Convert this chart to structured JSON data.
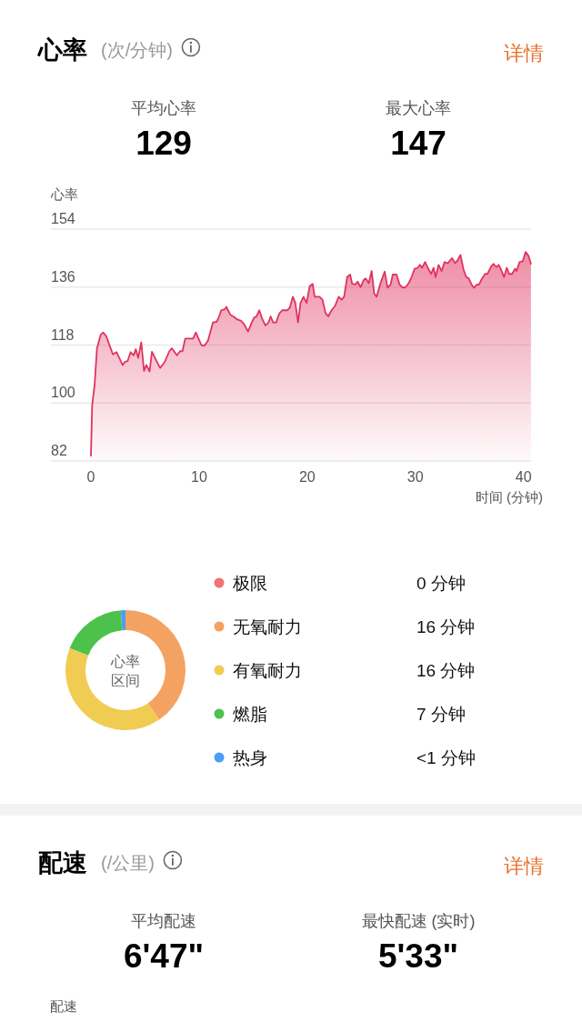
{
  "chart_data": [
    {
      "type": "area",
      "title": "心率",
      "subtitle": "(次/分钟)",
      "annotations": [
        "详情",
        "平均心率",
        "129",
        "最大心率",
        "147"
      ],
      "ylabel": "心率",
      "xlabel": "时间 (分钟)",
      "x": [
        0,
        0.11,
        0.34,
        0.56,
        0.9,
        1.13,
        1.41,
        2.03,
        2.37,
        2.93,
        3.16,
        3.39,
        3.67,
        3.95,
        4.15,
        4.37,
        4.65,
        4.91,
        5.13,
        5.42,
        5.64,
        6.21,
        6.4,
        6.83,
        7.25,
        7.48,
        7.95,
        8.24,
        8.46,
        8.72,
        9.45,
        9.7,
        10.21,
        10.49,
        10.83,
        11.28,
        11.62,
        11.82,
        12.05,
        12.41,
        12.52,
        12.89,
        13.17,
        13.51,
        13.88,
        14.16,
        14.53,
        14.87,
        15.1,
        15.29,
        15.57,
        15.85,
        16.14,
        16.42,
        16.62,
        16.85,
        17.12,
        17.41,
        17.69,
        18.17,
        18.4,
        18.67,
        18.9,
        19.15,
        19.38,
        19.66,
        19.94,
        20.23,
        20.5,
        20.69,
        21.14,
        21.41,
        21.69,
        21.94,
        22.25,
        22.58,
        22.91,
        23.19,
        23.41,
        23.69,
        23.97,
        24.16,
        24.44,
        24.66,
        24.94,
        25.22,
        25.41,
        25.69,
        25.96,
        26.19,
        26.41,
        26.74,
        27.16,
        27.43,
        27.71,
        27.91,
        28.27,
        28.54,
        28.82,
        29.1,
        29.38,
        29.65,
        29.93,
        30.21,
        30.43,
        30.62,
        30.9,
        31.23,
        31.46,
        31.68,
        31.87,
        32.15,
        32.43,
        32.7,
        32.98,
        33.4,
        33.68,
        33.9,
        34.17,
        34.45,
        34.7,
        34.92,
        35.2,
        35.42,
        35.7,
        35.89,
        36.17,
        36.45,
        36.67,
        37,
        37.23,
        37.48,
        37.7,
        37.92,
        38.2,
        38.45,
        38.67,
        38.95,
        39.22,
        39.36,
        39.64,
        39.92,
        40.19,
        40.47,
        40.69
      ],
      "series": [
        {
          "color": "#e0335f",
          "values": [
            83.6,
            99.1,
            105.7,
            117,
            121.2,
            121.9,
            120.8,
            115.1,
            115.8,
            111.8,
            112.8,
            113,
            115.8,
            114.8,
            116.7,
            114,
            118.9,
            110,
            111.8,
            109.8,
            115.9,
            112.1,
            110.9,
            112.8,
            116.1,
            117,
            114.8,
            116.1,
            116.1,
            120,
            120,
            121.9,
            118,
            117.8,
            119.4,
            125,
            125.2,
            126.6,
            128.8,
            129.2,
            129.9,
            127.4,
            126.9,
            126,
            125.5,
            124.5,
            122.2,
            125,
            126.6,
            126.8,
            128.8,
            126,
            124.1,
            125,
            126.9,
            125,
            125,
            127.8,
            128.8,
            128.8,
            129.7,
            133,
            131.1,
            125,
            131.1,
            133,
            131.1,
            136.3,
            137,
            133,
            133,
            132.1,
            128,
            126.9,
            128.8,
            130.2,
            133,
            132.1,
            133,
            139.1,
            139.9,
            137,
            136.8,
            137.7,
            136,
            138.2,
            138.7,
            137.2,
            141,
            134,
            133,
            136.8,
            140.8,
            135.8,
            136.8,
            139.9,
            139.9,
            136.8,
            135.8,
            136,
            137.2,
            139.1,
            141.7,
            142,
            142.9,
            142,
            143.8,
            141.5,
            140.1,
            142,
            139.1,
            142.9,
            141,
            143.8,
            143.4,
            145,
            143.4,
            144.3,
            146,
            141.5,
            139.1,
            138.8,
            136.8,
            135.8,
            136.8,
            136.8,
            138.7,
            140.1,
            140.1,
            142.4,
            143.2,
            142.2,
            142.9,
            141.5,
            139.1,
            142,
            140.1,
            140.1,
            141.7,
            141,
            143.8,
            144,
            146.9,
            145.7,
            143.2
          ]
        }
      ],
      "xlim": [
        -3.7,
        40.7
      ],
      "ylim": [
        82,
        154
      ],
      "xticks": [
        0,
        10,
        20,
        30,
        40
      ],
      "yticks": [
        82,
        100,
        118,
        136,
        154
      ],
      "grid": "y"
    },
    {
      "type": "donut",
      "annotations": [
        "心率",
        "区间"
      ],
      "categories": [
        "极限",
        "无氧耐力",
        "有氧耐力",
        "燃脂",
        "热身"
      ],
      "values": [
        0,
        16,
        16,
        7,
        0.5
      ],
      "colors": [
        "#f07272",
        "#f4a262",
        "#f1cc52",
        "#4cc24c",
        "#4a9ff5"
      ],
      "value_labels": [
        "0 分钟",
        "16 分钟",
        "16 分钟",
        "7 分钟",
        "<1 分钟"
      ],
      "legend": "right"
    },
    {
      "type": "other",
      "title": "配速",
      "subtitle": "(/公里)",
      "annotations": [
        "详情",
        "平均配速",
        "6'47\"",
        "最快配速 (实时)",
        "5'33\""
      ],
      "ylabel": "配速"
    }
  ]
}
